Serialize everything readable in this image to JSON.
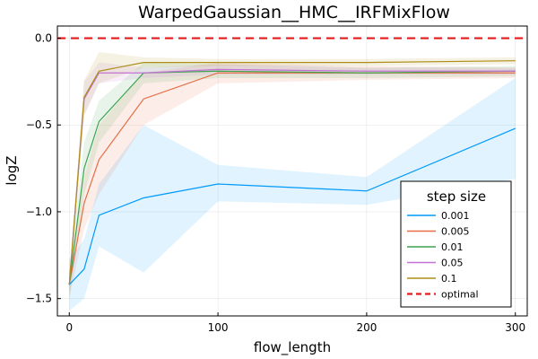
{
  "chart_data": {
    "type": "line",
    "title": "WarpedGaussian__HMC__IRFMixFlow",
    "xlabel": "flow_length",
    "ylabel": "logZ",
    "xlim": [
      -8,
      308
    ],
    "ylim": [
      -1.6,
      0.07
    ],
    "xticks": [
      0,
      100,
      200,
      300
    ],
    "yticks": [
      0.0,
      -0.5,
      -1.0,
      -1.5
    ],
    "xtick_labels": [
      "0",
      "100",
      "200",
      "300"
    ],
    "ytick_labels": [
      "0.0",
      "−0.5",
      "−1.0",
      "−1.5"
    ],
    "grid": true,
    "legend": {
      "title": "step size",
      "position": "bottom-right"
    },
    "x": [
      0,
      10,
      20,
      50,
      100,
      200,
      300
    ],
    "series": [
      {
        "name": "0.001",
        "color": "#009AFA",
        "values": [
          -1.42,
          -1.33,
          -1.02,
          -0.92,
          -0.84,
          -0.88,
          -0.52
        ],
        "lower": [
          -1.57,
          -1.5,
          -1.2,
          -1.35,
          -0.94,
          -0.96,
          -0.81
        ],
        "upper": [
          -1.27,
          -1.16,
          -0.84,
          -0.5,
          -0.73,
          -0.8,
          -0.23
        ]
      },
      {
        "name": "0.005",
        "color": "#E36F47",
        "values": [
          -1.42,
          -0.95,
          -0.7,
          -0.35,
          -0.2,
          -0.2,
          -0.2
        ],
        "lower": [
          -1.5,
          -1.1,
          -0.9,
          -0.5,
          -0.26,
          -0.24,
          -0.23
        ],
        "upper": [
          -1.34,
          -0.8,
          -0.5,
          -0.2,
          -0.14,
          -0.16,
          -0.17
        ]
      },
      {
        "name": "0.01",
        "color": "#3EA44E",
        "values": [
          -1.42,
          -0.75,
          -0.48,
          -0.2,
          -0.19,
          -0.2,
          -0.19
        ],
        "lower": [
          -1.5,
          -0.9,
          -0.6,
          -0.26,
          -0.23,
          -0.23,
          -0.22
        ],
        "upper": [
          -1.34,
          -0.6,
          -0.36,
          -0.14,
          -0.15,
          -0.17,
          -0.16
        ]
      },
      {
        "name": "0.05",
        "color": "#C371D2",
        "values": [
          -1.42,
          -0.35,
          -0.2,
          -0.2,
          -0.18,
          -0.19,
          -0.19
        ],
        "lower": [
          -1.46,
          -0.45,
          -0.26,
          -0.23,
          -0.21,
          -0.21,
          -0.21
        ],
        "upper": [
          -1.38,
          -0.25,
          -0.14,
          -0.17,
          -0.15,
          -0.17,
          -0.17
        ]
      },
      {
        "name": "0.1",
        "color": "#AC8E18",
        "values": [
          -1.42,
          -0.34,
          -0.19,
          -0.14,
          -0.14,
          -0.14,
          -0.13
        ],
        "lower": [
          -1.46,
          -0.44,
          -0.26,
          -0.17,
          -0.16,
          -0.16,
          -0.15
        ],
        "upper": [
          -1.38,
          -0.24,
          -0.08,
          -0.11,
          -0.12,
          -0.12,
          -0.11
        ]
      }
    ],
    "reference": {
      "name": "optimal",
      "value": 0.0,
      "color": "#E41A1C",
      "style": "dashed"
    }
  }
}
